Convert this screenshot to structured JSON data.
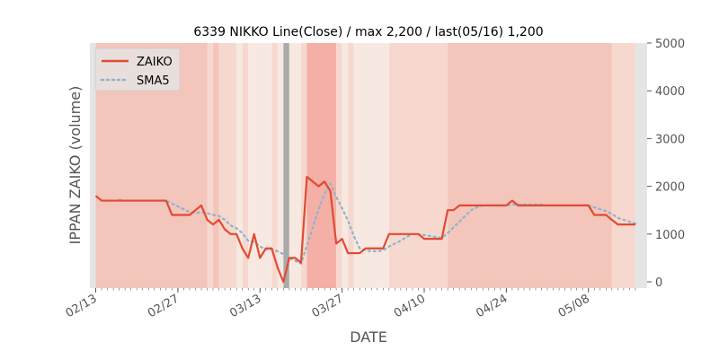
{
  "chart_data": {
    "type": "line",
    "title": "6339 NIKKO Line(Close) / max 2,200 / last(05/16) 1,200",
    "xlabel": "DATE",
    "ylabel": "IPPAN ZAIKO (volume)",
    "ylim": [
      0,
      5000
    ],
    "yaxis_side": "right",
    "yticks": [
      "0",
      "1000",
      "2000",
      "3000",
      "4000",
      "5000"
    ],
    "xlim": [
      "02/12",
      "05/18"
    ],
    "xticks": [
      {
        "date": "02/13",
        "label": "02/13"
      },
      {
        "date": "02/27",
        "label": "02/27"
      },
      {
        "date": "03/13",
        "label": "03/13"
      },
      {
        "date": "03/27",
        "label": "03/27"
      },
      {
        "date": "04/10",
        "label": "04/10"
      },
      {
        "date": "04/24",
        "label": "04/24"
      },
      {
        "date": "05/08",
        "label": "05/08"
      }
    ],
    "legend": {
      "position": "upper-left",
      "entries": [
        "ZAIKO",
        "SMA5"
      ]
    },
    "colors": {
      "zaiko": "#e24a33",
      "sma": "#8eb4cc",
      "highlight": "#aaaaaa",
      "band_strong": "#f4b0a6",
      "band_medium": "#f3c5bb",
      "band_light": "#f6d8cf",
      "band_pale": "#f7e9e1"
    },
    "x": [
      "02/13",
      "02/14",
      "02/15",
      "02/16",
      "02/17",
      "02/18",
      "02/19",
      "02/20",
      "02/21",
      "02/22",
      "02/23",
      "02/24",
      "02/25",
      "02/26",
      "02/27",
      "02/28",
      "03/01",
      "03/02",
      "03/03",
      "03/04",
      "03/05",
      "03/06",
      "03/07",
      "03/08",
      "03/09",
      "03/10",
      "03/11",
      "03/12",
      "03/13",
      "03/14",
      "03/15",
      "03/16",
      "03/17",
      "03/18",
      "03/19",
      "03/20",
      "03/21",
      "03/22",
      "03/23",
      "03/24",
      "03/25",
      "03/26",
      "03/27",
      "03/28",
      "03/29",
      "03/30",
      "03/31",
      "04/01",
      "04/02",
      "04/03",
      "04/04",
      "04/05",
      "04/06",
      "04/07",
      "04/08",
      "04/09",
      "04/10",
      "04/11",
      "04/12",
      "04/13",
      "04/14",
      "04/15",
      "04/16",
      "04/17",
      "04/18",
      "04/19",
      "04/20",
      "04/21",
      "04/22",
      "04/23",
      "04/24",
      "04/25",
      "04/26",
      "04/27",
      "04/28",
      "04/29",
      "04/30",
      "05/01",
      "05/02",
      "05/03",
      "05/04",
      "05/05",
      "05/06",
      "05/07",
      "05/08",
      "05/09",
      "05/10",
      "05/11",
      "05/12",
      "05/13",
      "05/14",
      "05/15",
      "05/16"
    ],
    "series": [
      {
        "name": "ZAIKO",
        "style": "solid",
        "values": [
          1800,
          1700,
          1700,
          1700,
          1700,
          1700,
          1700,
          1700,
          1700,
          1700,
          1700,
          1700,
          1700,
          1400,
          1400,
          1400,
          1400,
          1500,
          1600,
          1300,
          1200,
          1300,
          1100,
          1000,
          1000,
          700,
          500,
          1000,
          500,
          700,
          700,
          300,
          0,
          500,
          500,
          400,
          2200,
          2100,
          2000,
          2100,
          1900,
          800,
          900,
          600,
          600,
          600,
          700,
          700,
          700,
          700,
          1000,
          1000,
          1000,
          1000,
          1000,
          1000,
          900,
          900,
          900,
          900,
          1500,
          1500,
          1600,
          1600,
          1600,
          1600,
          1600,
          1600,
          1600,
          1600,
          1600,
          1700,
          1600,
          1600,
          1600,
          1600,
          1600,
          1600,
          1600,
          1600,
          1600,
          1600,
          1600,
          1600,
          1600,
          1400,
          1400,
          1400,
          1300,
          1200,
          1200,
          1200,
          1200
        ]
      },
      {
        "name": "SMA5",
        "style": "dotted",
        "values": [
          null,
          null,
          null,
          null,
          1720,
          1700,
          1700,
          1700,
          1700,
          1700,
          1700,
          1700,
          1700,
          1640,
          1580,
          1520,
          1460,
          1440,
          1460,
          1440,
          1400,
          1380,
          1300,
          1180,
          1120,
          1020,
          860,
          840,
          740,
          680,
          680,
          640,
          580,
          500,
          440,
          380,
          760,
          1140,
          1520,
          1840,
          2060,
          1780,
          1540,
          1280,
          960,
          700,
          660,
          640,
          640,
          660,
          740,
          800,
          860,
          940,
          1000,
          1000,
          980,
          960,
          940,
          920,
          1020,
          1140,
          1260,
          1380,
          1500,
          1560,
          1600,
          1600,
          1600,
          1600,
          1600,
          1620,
          1620,
          1620,
          1620,
          1620,
          1620,
          1600,
          1600,
          1600,
          1600,
          1600,
          1600,
          1600,
          1600,
          1560,
          1520,
          1480,
          1420,
          1340,
          1300,
          1260,
          1220
        ]
      }
    ],
    "bands": [
      {
        "start": "02/12",
        "end": "02/13",
        "level": "gray"
      },
      {
        "start": "02/13",
        "end": "03/04",
        "level": "medium"
      },
      {
        "start": "03/04",
        "end": "03/05",
        "level": "light"
      },
      {
        "start": "03/05",
        "end": "03/06",
        "level": "medium"
      },
      {
        "start": "03/06",
        "end": "03/09",
        "level": "light"
      },
      {
        "start": "03/09",
        "end": "03/10",
        "level": "pale"
      },
      {
        "start": "03/10",
        "end": "03/11",
        "level": "light"
      },
      {
        "start": "03/11",
        "end": "03/15",
        "level": "pale"
      },
      {
        "start": "03/15",
        "end": "03/16",
        "level": "light"
      },
      {
        "start": "03/16",
        "end": "03/17",
        "level": "pale"
      },
      {
        "start": "03/17",
        "end": "03/18",
        "level": "highlight"
      },
      {
        "start": "03/18",
        "end": "03/20",
        "level": "pale"
      },
      {
        "start": "03/20",
        "end": "03/21",
        "level": "light"
      },
      {
        "start": "03/21",
        "end": "03/26",
        "level": "strong"
      },
      {
        "start": "03/26",
        "end": "03/27",
        "level": "light"
      },
      {
        "start": "03/27",
        "end": "03/28",
        "level": "pale"
      },
      {
        "start": "03/28",
        "end": "03/29",
        "level": "light"
      },
      {
        "start": "03/29",
        "end": "04/04",
        "level": "pale"
      },
      {
        "start": "04/04",
        "end": "04/14",
        "level": "light"
      },
      {
        "start": "04/14",
        "end": "05/12",
        "level": "medium"
      },
      {
        "start": "05/12",
        "end": "05/16",
        "level": "light"
      },
      {
        "start": "05/16",
        "end": "05/18",
        "level": "gray"
      }
    ]
  }
}
